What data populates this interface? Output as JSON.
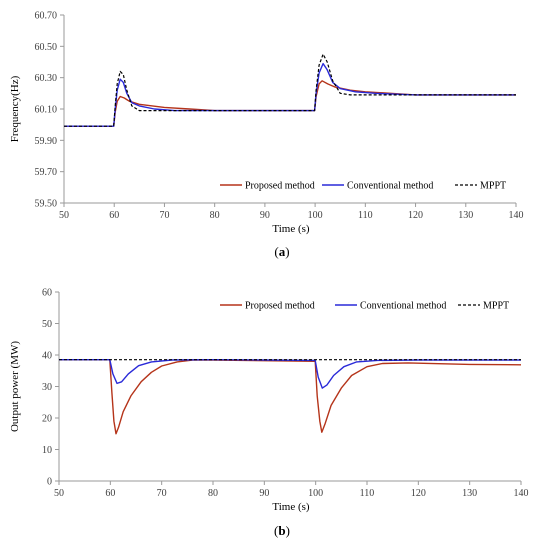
{
  "chart_data": [
    {
      "type": "line",
      "panel_label": "a",
      "xlabel": "Time (s)",
      "ylabel": "Frequency(Hz)",
      "xlim": [
        50,
        140
      ],
      "ylim": [
        59.5,
        60.7
      ],
      "xticks": [
        "50",
        "60",
        "70",
        "80",
        "90",
        "100",
        "110",
        "120",
        "130",
        "140"
      ],
      "yticks": [
        "59.50",
        "59.70",
        "59.90",
        "60.10",
        "60.30",
        "60.50",
        "60.70"
      ],
      "grid": false,
      "legend_position": "bottom-right",
      "series": [
        {
          "name": "Proposed method",
          "color": "#b5341a",
          "dash": "solid",
          "points": [
            [
              50,
              59.99
            ],
            [
              59.9,
              59.99
            ],
            [
              60.2,
              60.08
            ],
            [
              60.6,
              60.15
            ],
            [
              61.2,
              60.18
            ],
            [
              62,
              60.17
            ],
            [
              63,
              60.15
            ],
            [
              65,
              60.13
            ],
            [
              70,
              60.11
            ],
            [
              75,
              60.1
            ],
            [
              80,
              60.09
            ],
            [
              90,
              60.09
            ],
            [
              99.9,
              60.09
            ],
            [
              100.2,
              60.18
            ],
            [
              100.8,
              60.26
            ],
            [
              101.4,
              60.28
            ],
            [
              102.5,
              60.26
            ],
            [
              104,
              60.24
            ],
            [
              107,
              60.22
            ],
            [
              110,
              60.21
            ],
            [
              115,
              60.2
            ],
            [
              120,
              60.19
            ],
            [
              130,
              60.19
            ],
            [
              140,
              60.19
            ]
          ]
        },
        {
          "name": "Conventional method",
          "color": "#2a2ad8",
          "dash": "solid",
          "points": [
            [
              50,
              59.99
            ],
            [
              59.9,
              59.99
            ],
            [
              60.2,
              60.1
            ],
            [
              60.6,
              60.22
            ],
            [
              61.2,
              60.29
            ],
            [
              61.8,
              60.27
            ],
            [
              62.5,
              60.2
            ],
            [
              63.5,
              60.14
            ],
            [
              65,
              60.12
            ],
            [
              68,
              60.1
            ],
            [
              72,
              60.09
            ],
            [
              80,
              60.09
            ],
            [
              90,
              60.09
            ],
            [
              99.9,
              60.09
            ],
            [
              100.2,
              60.2
            ],
            [
              100.8,
              60.33
            ],
            [
              101.6,
              60.39
            ],
            [
              102.4,
              60.35
            ],
            [
              103.5,
              60.27
            ],
            [
              105,
              60.23
            ],
            [
              108,
              60.21
            ],
            [
              112,
              60.2
            ],
            [
              120,
              60.19
            ],
            [
              130,
              60.19
            ],
            [
              140,
              60.19
            ]
          ]
        },
        {
          "name": "MPPT",
          "color": "#000000",
          "dash": "dashed",
          "points": [
            [
              50,
              59.99
            ],
            [
              59.9,
              59.99
            ],
            [
              60.2,
              60.12
            ],
            [
              60.6,
              60.26
            ],
            [
              61.2,
              60.34
            ],
            [
              61.8,
              60.32
            ],
            [
              62.5,
              60.22
            ],
            [
              63.5,
              60.12
            ],
            [
              65,
              60.09
            ],
            [
              70,
              60.09
            ],
            [
              80,
              60.09
            ],
            [
              90,
              60.09
            ],
            [
              99.9,
              60.09
            ],
            [
              100.2,
              60.22
            ],
            [
              100.8,
              60.38
            ],
            [
              101.6,
              60.45
            ],
            [
              102.4,
              60.4
            ],
            [
              103.5,
              60.28
            ],
            [
              105,
              60.2
            ],
            [
              107,
              60.19
            ],
            [
              110,
              60.19
            ],
            [
              120,
              60.19
            ],
            [
              130,
              60.19
            ],
            [
              140,
              60.19
            ]
          ]
        }
      ]
    },
    {
      "type": "line",
      "panel_label": "b",
      "xlabel": "Time (s)",
      "ylabel": "Output power (MW)",
      "xlim": [
        50,
        140
      ],
      "ylim": [
        0,
        60
      ],
      "xticks": [
        "50",
        "60",
        "70",
        "80",
        "90",
        "100",
        "110",
        "120",
        "130",
        "140"
      ],
      "yticks": [
        "0",
        "10",
        "20",
        "30",
        "40",
        "50",
        "60"
      ],
      "grid": false,
      "legend_position": "top-right",
      "series": [
        {
          "name": "Proposed method",
          "color": "#b5341a",
          "dash": "solid",
          "points": [
            [
              50,
              38.5
            ],
            [
              59.9,
              38.5
            ],
            [
              60.3,
              28
            ],
            [
              60.7,
              19
            ],
            [
              61.1,
              15
            ],
            [
              61.6,
              17
            ],
            [
              62.5,
              22
            ],
            [
              64,
              27
            ],
            [
              66,
              31.5
            ],
            [
              68,
              34.5
            ],
            [
              70,
              36.5
            ],
            [
              73,
              37.8
            ],
            [
              76,
              38.4
            ],
            [
              80,
              38.4
            ],
            [
              90,
              38.2
            ],
            [
              99.9,
              38
            ],
            [
              100.3,
              27
            ],
            [
              100.8,
              19
            ],
            [
              101.2,
              15.5
            ],
            [
              101.8,
              18
            ],
            [
              103,
              24
            ],
            [
              105,
              29.5
            ],
            [
              107,
              33.5
            ],
            [
              110,
              36.3
            ],
            [
              113,
              37.3
            ],
            [
              118,
              37.5
            ],
            [
              125,
              37.2
            ],
            [
              130,
              37
            ],
            [
              140,
              36.9
            ]
          ]
        },
        {
          "name": "Conventional method",
          "color": "#2a2ad8",
          "dash": "solid",
          "points": [
            [
              50,
              38.5
            ],
            [
              59.9,
              38.5
            ],
            [
              60.5,
              34
            ],
            [
              61.3,
              31
            ],
            [
              62.2,
              31.5
            ],
            [
              63.5,
              34
            ],
            [
              65.5,
              36.6
            ],
            [
              68,
              37.8
            ],
            [
              72,
              38.4
            ],
            [
              80,
              38.5
            ],
            [
              90,
              38.4
            ],
            [
              99.9,
              38.3
            ],
            [
              100.5,
              33
            ],
            [
              101.3,
              29.5
            ],
            [
              102.2,
              30.5
            ],
            [
              103.5,
              33.5
            ],
            [
              105.5,
              36.3
            ],
            [
              108,
              37.8
            ],
            [
              112,
              38.3
            ],
            [
              120,
              38.4
            ],
            [
              130,
              38.4
            ],
            [
              140,
              38.4
            ]
          ]
        },
        {
          "name": "MPPT",
          "color": "#000000",
          "dash": "dashed",
          "points": [
            [
              50,
              38.5
            ],
            [
              60,
              38.5
            ],
            [
              70,
              38.5
            ],
            [
              80,
              38.5
            ],
            [
              90,
              38.5
            ],
            [
              100,
              38.5
            ],
            [
              110,
              38.5
            ],
            [
              120,
              38.5
            ],
            [
              130,
              38.5
            ],
            [
              140,
              38.5
            ]
          ]
        }
      ]
    }
  ]
}
